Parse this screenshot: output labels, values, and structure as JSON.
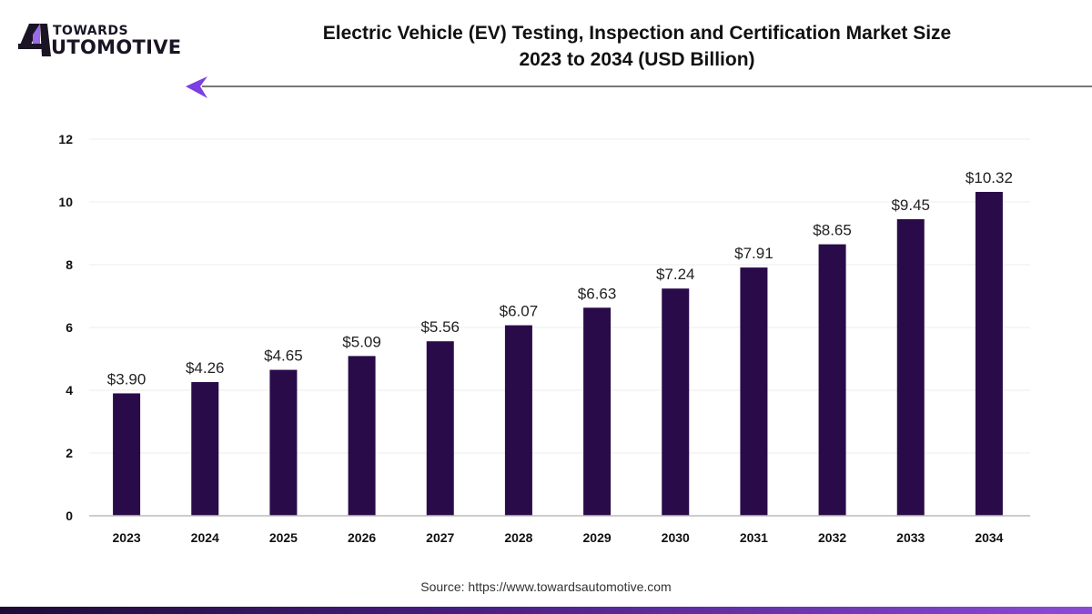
{
  "brand": {
    "logo_top": "TOWARDS",
    "logo_bottom": "UTOMOTIVE",
    "logo_icon": "stylized-a-logo-icon",
    "arrow_icon": "arrow-left-icon",
    "colors": {
      "bar": "#2a0b4a",
      "accent": "#7b3fe4",
      "text": "#111111"
    }
  },
  "header": {
    "title_line1": "Electric Vehicle (EV) Testing, Inspection and Certification Market Size",
    "title_line2": "2023 to 2034 (USD Billion)"
  },
  "footer": {
    "source": "Source: https://www.towardsautomotive.com"
  },
  "chart_data": {
    "type": "bar",
    "title": "Electric Vehicle (EV) Testing, Inspection and Certification Market Size 2023 to 2034 (USD Billion)",
    "xlabel": "",
    "ylabel": "",
    "categories": [
      "2023",
      "2024",
      "2025",
      "2026",
      "2027",
      "2028",
      "2029",
      "2030",
      "2031",
      "2032",
      "2033",
      "2034"
    ],
    "values": [
      3.9,
      4.26,
      4.65,
      5.09,
      5.56,
      6.07,
      6.63,
      7.24,
      7.91,
      8.65,
      9.45,
      10.32
    ],
    "data_labels": [
      "$3.90",
      "$4.26",
      "$4.65",
      "$5.09",
      "$5.56",
      "$6.07",
      "$6.63",
      "$7.24",
      "$7.91",
      "$8.65",
      "$9.45",
      "$10.32"
    ],
    "ylim": [
      0,
      12
    ],
    "yticks": [
      0,
      2,
      4,
      6,
      8,
      10,
      12
    ],
    "grid": true,
    "legend": "none"
  }
}
